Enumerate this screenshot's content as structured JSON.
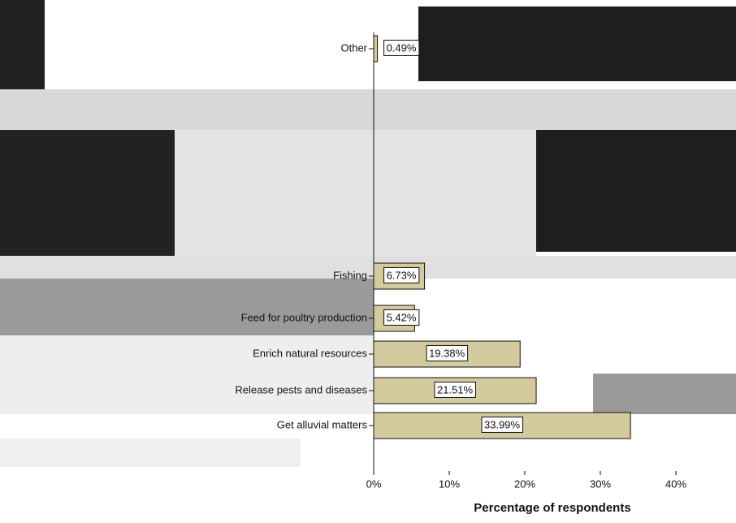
{
  "chart_data": {
    "type": "bar",
    "orientation": "horizontal",
    "x_label": "Percentage of respondents",
    "categories": [
      "Other",
      "Fishing",
      "Feed for poultry production",
      "Enrich natural resources",
      "Release pests and diseases",
      "Get alluvial matters"
    ],
    "values": [
      0.49,
      6.73,
      5.42,
      19.38,
      21.51,
      33.99
    ],
    "value_labels": [
      "0.49%",
      "6.73%",
      "5.42%",
      "19.38%",
      "21.51%",
      "33.99%"
    ],
    "color": "#d3cb9d",
    "xlim": [
      0,
      40
    ],
    "xticks": [
      {
        "value": 0,
        "label": "0%"
      },
      {
        "value": 10,
        "label": "10%"
      },
      {
        "value": 20,
        "label": "20%"
      },
      {
        "value": 30,
        "label": "30%"
      },
      {
        "value": 40,
        "label": "40%"
      }
    ]
  }
}
